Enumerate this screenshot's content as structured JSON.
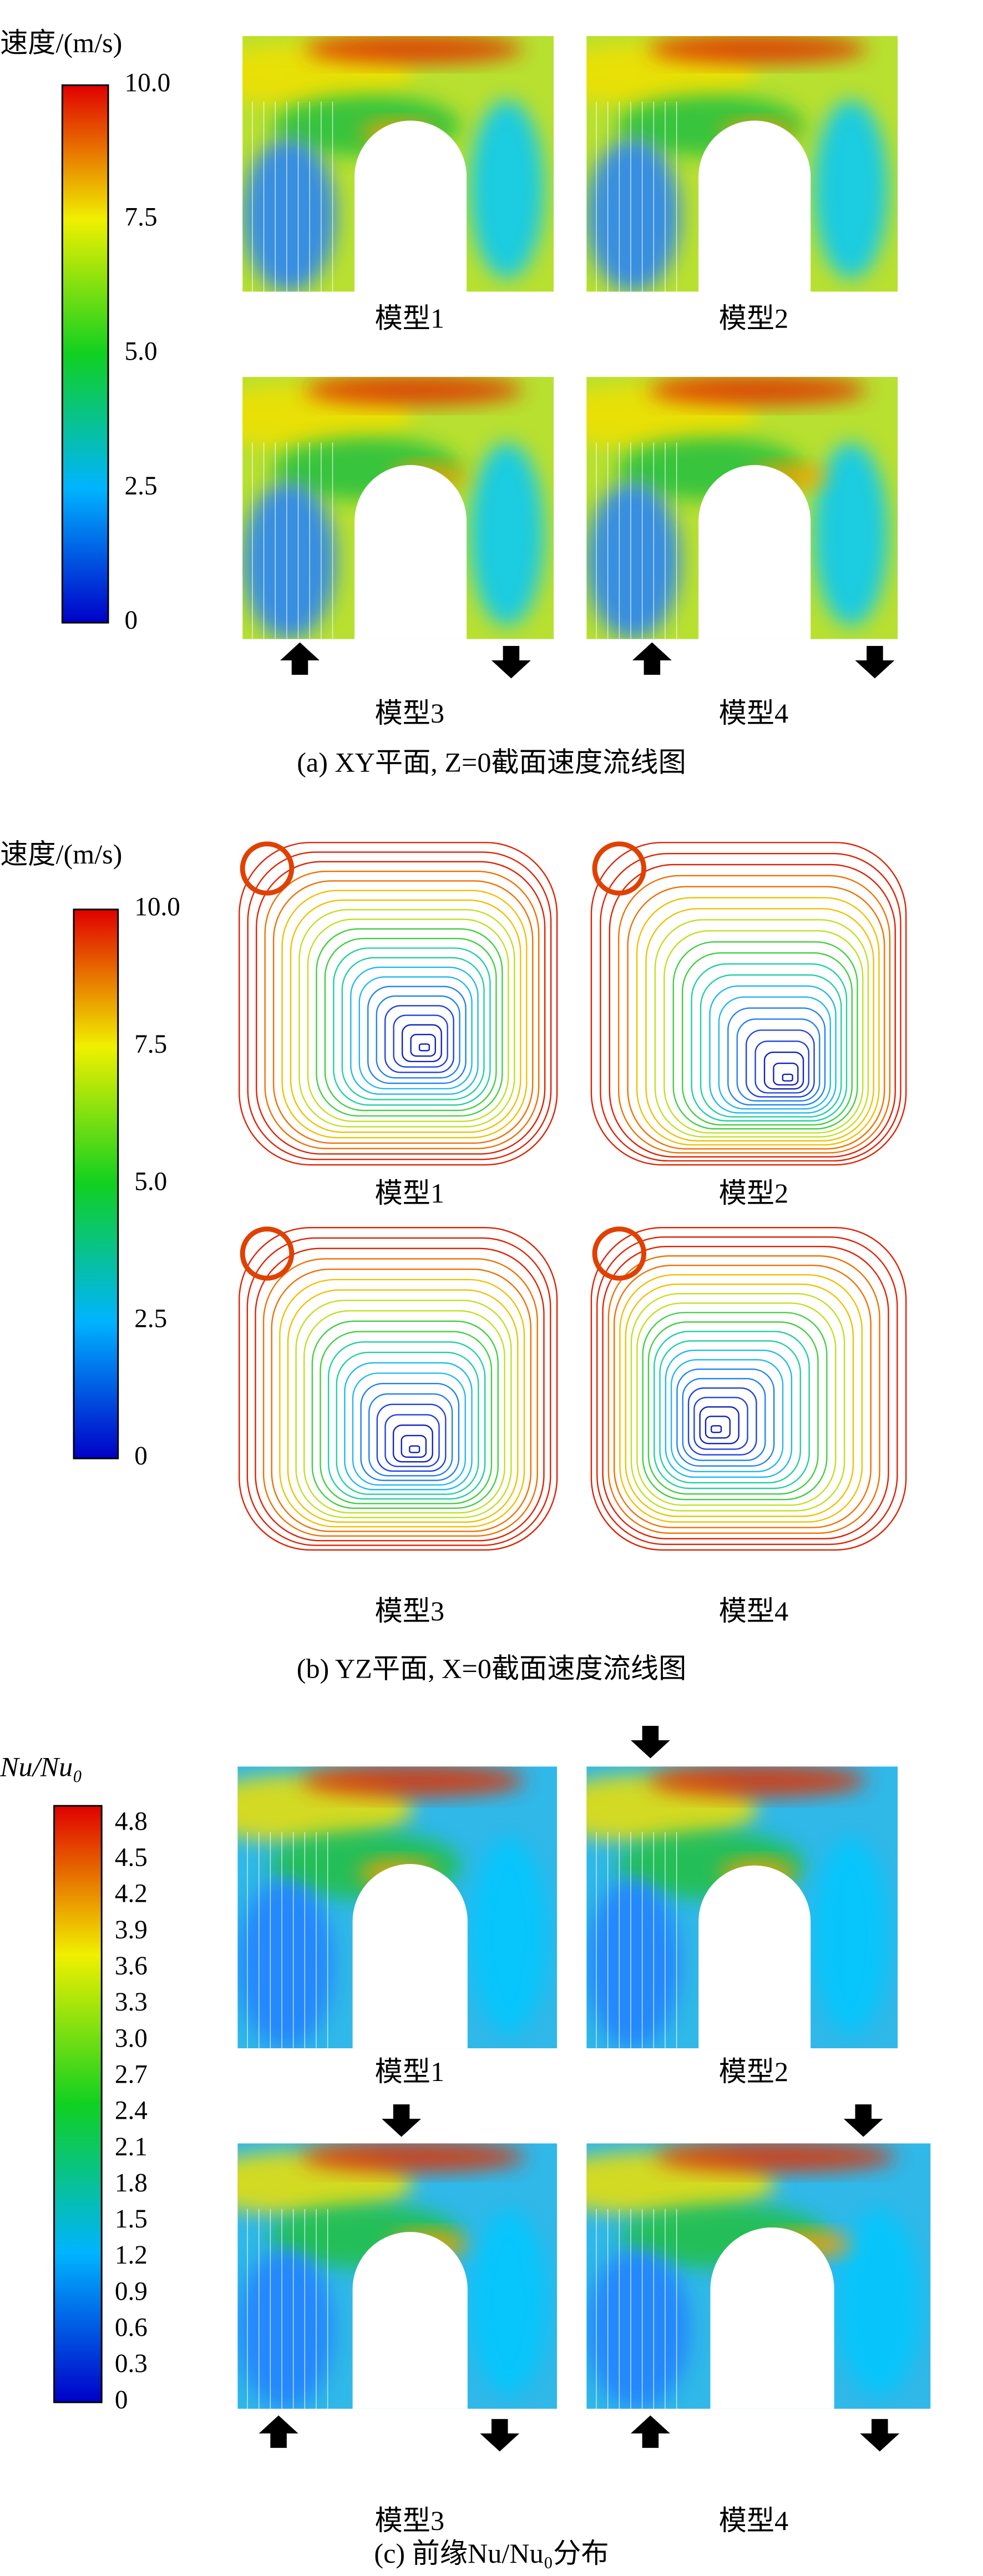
{
  "panels": [
    {
      "legend_title": "速度/(m/s)",
      "legend_ticks": [
        "10.0",
        "7.5",
        "5.0",
        "2.5",
        "0"
      ],
      "models": [
        "模型1",
        "模型2",
        "模型3",
        "模型4"
      ],
      "caption": "(a) XY平面, Z=0截面速度流线图"
    },
    {
      "legend_title": "速度/(m/s)",
      "legend_ticks": [
        "10.0",
        "7.5",
        "5.0",
        "2.5",
        "0"
      ],
      "models": [
        "模型1",
        "模型2",
        "模型3",
        "模型4"
      ],
      "caption": "(b) YZ平面, X=0截面速度流线图"
    },
    {
      "legend_title": "Nu/Nu₀",
      "legend_ticks": [
        "4.8",
        "4.5",
        "4.2",
        "3.9",
        "3.6",
        "3.3",
        "3.0",
        "2.7",
        "2.4",
        "2.1",
        "1.8",
        "1.5",
        "1.2",
        "0.9",
        "0.6",
        "0.3",
        "0"
      ],
      "models": [
        "模型1",
        "模型2",
        "模型3",
        "模型4"
      ],
      "caption": "(c) 前缘Nu/Nu₀分布"
    }
  ]
}
